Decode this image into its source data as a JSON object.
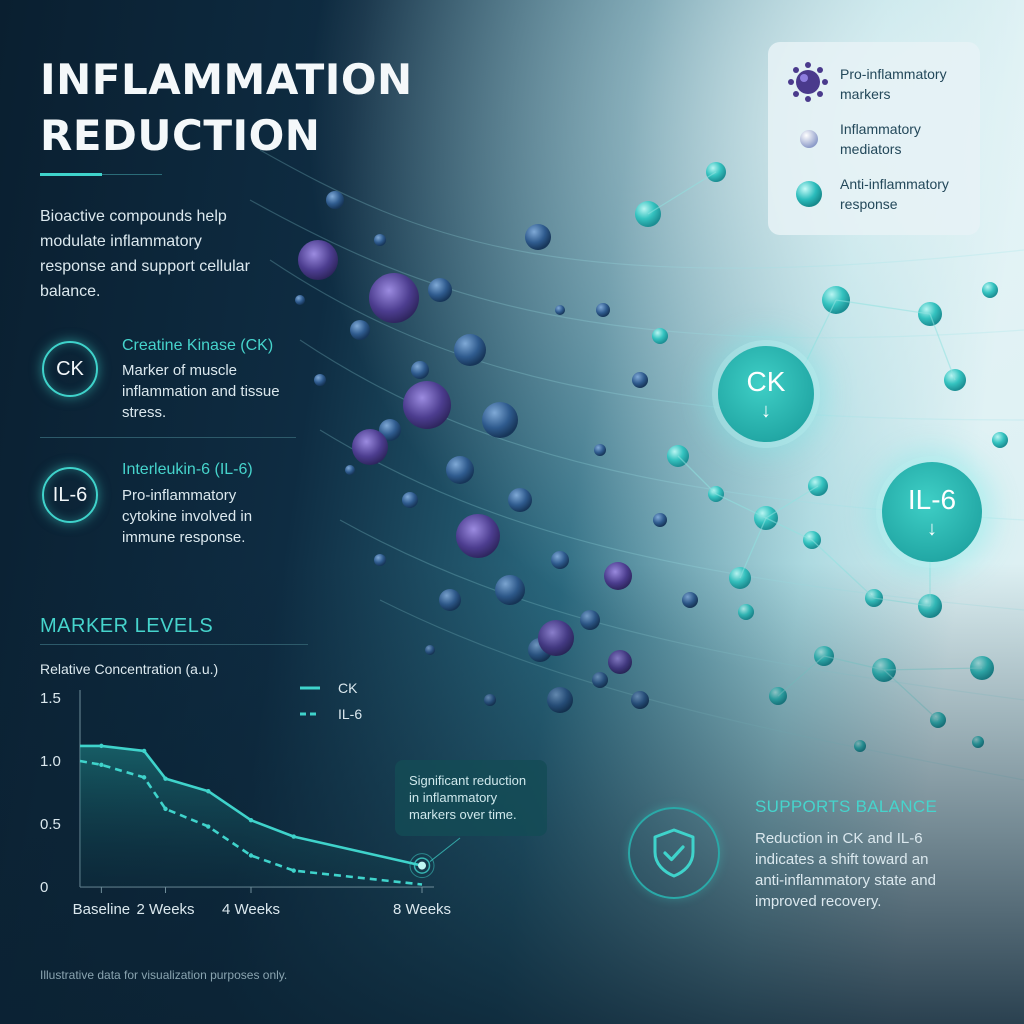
{
  "title_line1": "INFLAMMATION",
  "title_line2": "REDUCTION",
  "intro": "Bioactive compounds help modulate inflammatory response and support cellular balance.",
  "markers": [
    {
      "badge": "CK",
      "name": "Creatine Kinase (CK)",
      "description": "Marker of muscle inflammation and tissue stress."
    },
    {
      "badge": "IL-6",
      "name": "Interleukin-6 (IL-6)",
      "description": "Pro-inflammatory cytokine involved in immune response."
    }
  ],
  "legend": [
    {
      "label": "Pro-inflammatory markers",
      "icon": "virus-icon",
      "color": "#5b4a96"
    },
    {
      "label": "Inflammatory mediators",
      "icon": "sphere-icon",
      "color": "#aab6dd"
    },
    {
      "label": "Anti-inflammatory response",
      "icon": "sphere-icon",
      "color": "#2bbcbc"
    }
  ],
  "big_markers": [
    {
      "label": "CK",
      "arrow": "↓"
    },
    {
      "label": "IL-6",
      "arrow": "↓"
    }
  ],
  "chart_section_title": "MARKER LEVELS",
  "chart_data": {
    "type": "line",
    "title": "",
    "ylabel": "Relative Concentration (a.u.)",
    "xlabel": "",
    "ylim": [
      0,
      1.5
    ],
    "yticks": [
      "1.5",
      "1.0",
      "0.5",
      "0"
    ],
    "x_tick_labels": [
      "Baseline",
      "2 Weeks",
      "4 Weeks",
      "8 Weeks"
    ],
    "x_tick_weeks": [
      0.5,
      2,
      4,
      8
    ],
    "x_range_weeks": [
      0,
      8
    ],
    "series": [
      {
        "name": "CK",
        "style": "solid",
        "color": "#3fd3cb",
        "x": [
          0,
          0.5,
          1.5,
          2,
          3,
          4,
          5,
          8
        ],
        "y": [
          1.12,
          1.12,
          1.08,
          0.86,
          0.76,
          0.53,
          0.4,
          0.17
        ]
      },
      {
        "name": "IL-6",
        "style": "dashed",
        "color": "#3fd3cb",
        "x": [
          0,
          0.5,
          1.5,
          2,
          3,
          4,
          5,
          8
        ],
        "y": [
          1.0,
          0.97,
          0.87,
          0.62,
          0.48,
          0.25,
          0.13,
          0.02
        ]
      }
    ],
    "legend_position": "top-right",
    "grid": false
  },
  "annotation": "Significant reduction in inflammatory markers over time.",
  "balance": {
    "title": "SUPPORTS BALANCE",
    "description": "Reduction in CK and IL-6 indicates a shift toward an anti-inflammatory state and improved recovery.",
    "icon": "shield-check-icon"
  },
  "footnote": "Illustrative data for visualization purposes only."
}
